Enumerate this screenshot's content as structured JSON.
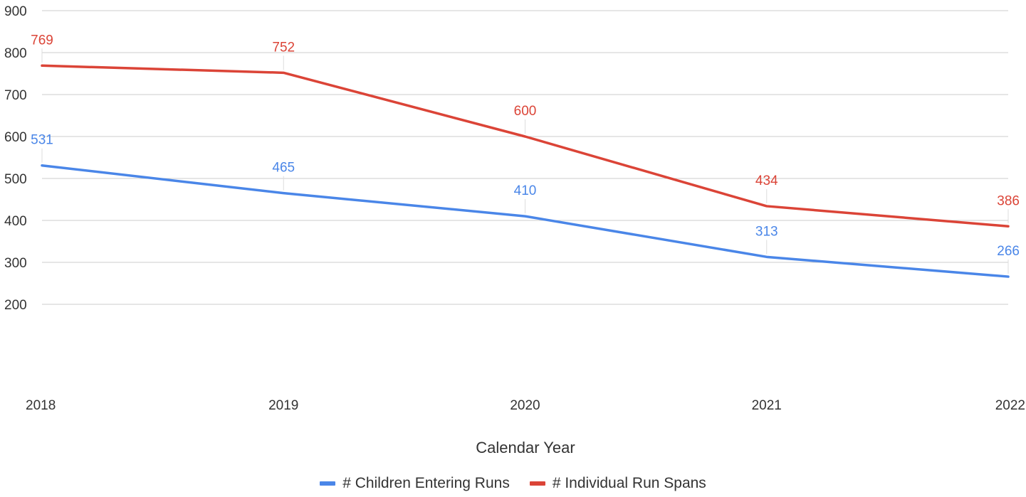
{
  "chart_data": {
    "type": "line",
    "title": "",
    "xlabel": "Calendar Year",
    "ylabel": "",
    "categories": [
      "2018",
      "2019",
      "2020",
      "2021",
      "2022"
    ],
    "yticks": [
      200,
      300,
      400,
      500,
      600,
      700,
      800,
      900
    ],
    "ylim": [
      200,
      900
    ],
    "grid": true,
    "legend_position": "bottom",
    "series": [
      {
        "name": "# Children Entering Runs",
        "color": "#4a86e8",
        "values": [
          531,
          465,
          410,
          313,
          266
        ]
      },
      {
        "name": "# Individual Run Spans",
        "color": "#db4437",
        "values": [
          769,
          752,
          600,
          434,
          386
        ]
      }
    ]
  }
}
